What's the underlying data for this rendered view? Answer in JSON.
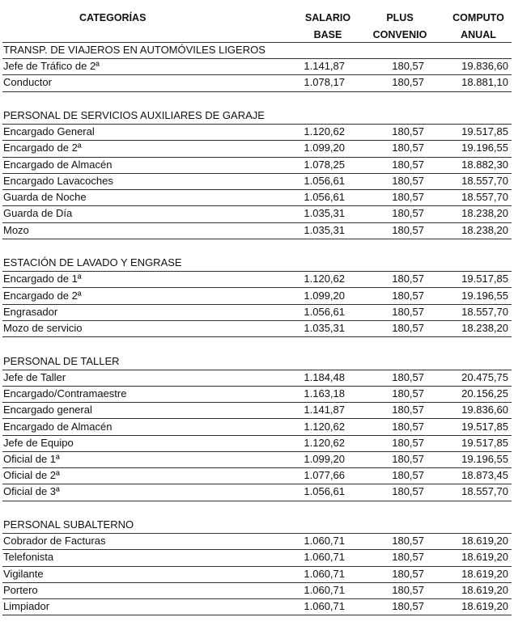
{
  "header": {
    "category": "CATEGORÍAS",
    "salario": [
      "SALARIO",
      "BASE"
    ],
    "plus": [
      "PLUS",
      "CONVENIO"
    ],
    "computo": [
      "COMPUTO",
      "ANUAL"
    ]
  },
  "sections": [
    {
      "title": "TRANSP. DE VIAJEROS EN AUTOMÓVILES LIGEROS",
      "rows": [
        [
          "Jefe de Tráfico de 2ª",
          "1.141,87",
          "180,57",
          "19.836,60"
        ],
        [
          "Conductor",
          "1.078,17",
          "180,57",
          "18.881,10"
        ]
      ]
    },
    {
      "title": "PERSONAL DE SERVICIOS AUXILIARES DE GARAJE",
      "rows": [
        [
          "Encargado General",
          "1.120,62",
          "180,57",
          "19.517,85"
        ],
        [
          "Encargado de 2ª",
          "1.099,20",
          "180,57",
          "19.196,55"
        ],
        [
          "Encargado de Almacén",
          "1.078,25",
          "180,57",
          "18.882,30"
        ],
        [
          "Encargado Lavacoches",
          "1.056,61",
          "180,57",
          "18.557,70"
        ],
        [
          "Guarda de Noche",
          "1.056,61",
          "180,57",
          "18.557,70"
        ],
        [
          "Guarda de Día",
          "1.035,31",
          "180,57",
          "18.238,20"
        ],
        [
          "Mozo",
          "1.035,31",
          "180,57",
          "18.238,20"
        ]
      ]
    },
    {
      "title": "ESTACIÓN DE LAVADO Y ENGRASE",
      "rows": [
        [
          "Encargado de 1ª",
          "1.120,62",
          "180,57",
          "19.517,85"
        ],
        [
          "Encargado de 2ª",
          "1.099,20",
          "180,57",
          "19.196,55"
        ],
        [
          "Engrasador",
          "1.056,61",
          "180,57",
          "18.557,70"
        ],
        [
          "Mozo de servicio",
          "1.035,31",
          "180,57",
          "18.238,20"
        ]
      ]
    },
    {
      "title": "PERSONAL DE TALLER",
      "rows": [
        [
          "Jefe de Taller",
          "1.184,48",
          "180,57",
          "20.475,75"
        ],
        [
          "Encargado/Contramaestre",
          "1.163,18",
          "180,57",
          "20.156,25"
        ],
        [
          "Encargado general",
          "1.141,87",
          "180,57",
          "19.836,60"
        ],
        [
          "Encargado de Almacén",
          "1.120,62",
          "180,57",
          "19.517,85"
        ],
        [
          "Jefe de Equipo",
          "1.120,62",
          "180,57",
          "19.517,85"
        ],
        [
          "Oficial de 1ª",
          "1.099,20",
          "180,57",
          "19.196,55"
        ],
        [
          "Oficial de 2ª",
          "1.077,66",
          "180,57",
          "18.873,45"
        ],
        [
          "Oficial de 3ª",
          "1.056,61",
          "180,57",
          "18.557,70"
        ]
      ]
    },
    {
      "title": "PERSONAL SUBALTERNO",
      "rows": [
        [
          "Cobrador de Facturas",
          "1.060,71",
          "180,57",
          "18.619,20"
        ],
        [
          "Telefonista",
          "1.060,71",
          "180,57",
          "18.619,20"
        ],
        [
          "Vigilante",
          "1.060,71",
          "180,57",
          "18.619,20"
        ],
        [
          "Portero",
          "1.060,71",
          "180,57",
          "18.619,20"
        ],
        [
          "Limpiador",
          "1.060,71",
          "180,57",
          "18.619,20"
        ]
      ]
    }
  ]
}
